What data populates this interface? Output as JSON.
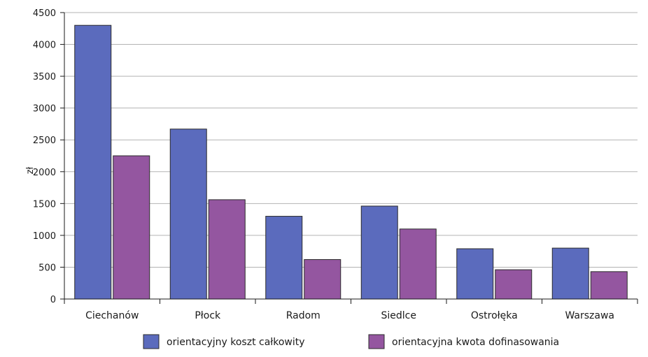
{
  "chart_data": {
    "type": "bar",
    "categories": [
      "Ciechanów",
      "Płock",
      "Radom",
      "Siedlce",
      "Ostrołęka",
      "Warszawa"
    ],
    "series": [
      {
        "name": "orientacyjny koszt całkowity",
        "color": "#5b6bbd",
        "values": [
          4300,
          2670,
          1300,
          1460,
          790,
          800
        ]
      },
      {
        "name": "orientacyjna kwota dofinasowania",
        "color": "#9456a0",
        "values": [
          2250,
          1560,
          620,
          1100,
          460,
          430
        ]
      }
    ],
    "title": "",
    "xlabel": "",
    "ylabel": "zł",
    "ylim": [
      0,
      4500
    ],
    "yticks": [
      0,
      500,
      1000,
      1500,
      2000,
      2500,
      3000,
      3500,
      4000,
      4500
    ],
    "grid": true,
    "legend_position": "bottom"
  }
}
